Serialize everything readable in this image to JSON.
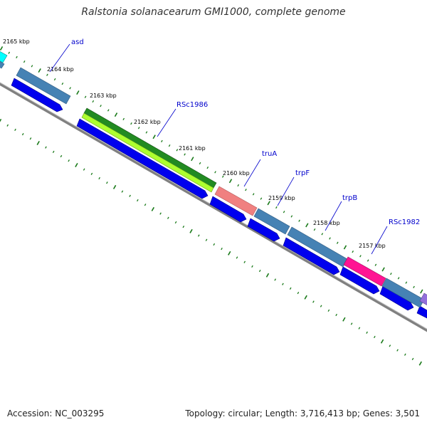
{
  "title": "Ralstonia solanacearum GMI1000, complete genome",
  "footer": {
    "accession": "Accession: NC_003295",
    "summary": "Topology: circular; Length: 3,716,413 bp; Genes: 3,501"
  },
  "ticks": [
    {
      "label": "2165 kbp"
    },
    {
      "label": "2164 kbp"
    },
    {
      "label": "2163 kbp"
    },
    {
      "label": "2162 kbp"
    },
    {
      "label": "2161 kbp"
    },
    {
      "label": "2160 kbp"
    },
    {
      "label": "2159 kbp"
    },
    {
      "label": "2158 kbp"
    },
    {
      "label": "2157 kbp"
    }
  ],
  "genes": [
    {
      "label": "asd"
    },
    {
      "label": "RSc1986"
    },
    {
      "label": "truA"
    },
    {
      "label": "trpF"
    },
    {
      "label": "trpB"
    },
    {
      "label": "RSc1982"
    }
  ],
  "colors": {
    "backbone": "#808080",
    "cds": "#0000ee",
    "tick": "#1a7a1a",
    "gene_label": "#0000cc",
    "feature_blue": "#4682b4",
    "feature_green": "#228b22",
    "feature_lime": "#adff2f",
    "feature_salmon": "#f08080",
    "feature_pink": "#ff1493",
    "feature_cyan": "#00ffff",
    "feature_purple": "#9370db"
  }
}
